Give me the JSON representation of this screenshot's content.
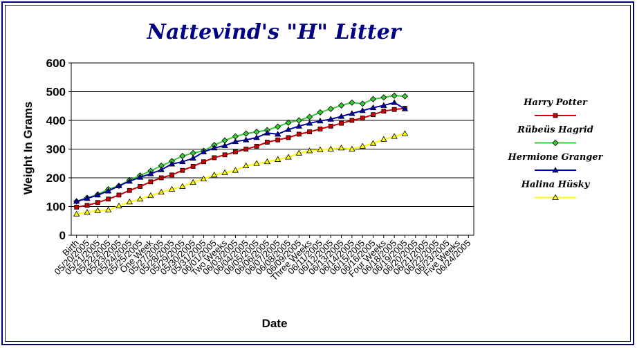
{
  "chart_data": {
    "type": "line",
    "title": "Nattevind's \"H\" Litter",
    "xlabel": "Date",
    "ylabel": "Weight In Grams",
    "ylim": [
      0,
      600
    ],
    "yticks": [
      0,
      100,
      200,
      300,
      400,
      500,
      600
    ],
    "grid": "horizontal",
    "legend_position": "right",
    "categories": [
      "Birth",
      "05/20/2005",
      "05/21/2005",
      "05/22/2005",
      "05/23/2005",
      "05/24/2005",
      "05/25/2005",
      "One Week",
      "05/27/2005",
      "05/28/2005",
      "05/29/2005",
      "05/30/2005",
      "05/31/2005",
      "06/01/2005",
      "Two Weeks",
      "06/03/2005",
      "06/04/2005",
      "06/05/2005",
      "06/06/2005",
      "06/07/2005",
      "06/08/2005",
      "06/09/2005",
      "Three Weeks",
      "06/11/2005",
      "06/12/2005",
      "06/13/2005",
      "06/14/2005",
      "06/15/2005",
      "06/16/2005",
      "Four Weeks",
      "06/18/2005",
      "06/19/2005",
      "06/20/2005",
      "06/21/2005",
      "06/22/2005",
      "06/23/2005",
      "Five Weeks",
      "06/24/2005"
    ],
    "series": [
      {
        "name": "Harry Potter",
        "color": "#cc0000",
        "marker": "square",
        "values": [
          98,
          104,
          114,
          126,
          140,
          156,
          170,
          186,
          200,
          210,
          226,
          240,
          256,
          270,
          280,
          290,
          300,
          310,
          324,
          332,
          340,
          352,
          360,
          370,
          380,
          390,
          400,
          408,
          420,
          432,
          438,
          442,
          null,
          null,
          null,
          null,
          null,
          null
        ]
      },
      {
        "name": "Rübeüs Hagrid",
        "color": "#33cc33",
        "marker": "diamond",
        "values": [
          118,
          130,
          142,
          160,
          172,
          192,
          208,
          224,
          242,
          258,
          276,
          286,
          294,
          314,
          330,
          344,
          354,
          360,
          366,
          378,
          392,
          400,
          412,
          428,
          440,
          452,
          462,
          458,
          474,
          480,
          486,
          484,
          null,
          null,
          null,
          null,
          null,
          null
        ]
      },
      {
        "name": "Hermione Granger",
        "color": "#0000aa",
        "marker": "triangle",
        "values": [
          118,
          128,
          140,
          154,
          172,
          188,
          202,
          214,
          228,
          248,
          256,
          268,
          290,
          304,
          312,
          326,
          332,
          340,
          356,
          352,
          368,
          380,
          390,
          398,
          404,
          414,
          424,
          434,
          444,
          452,
          462,
          440,
          null,
          null,
          null,
          null,
          null,
          null
        ]
      },
      {
        "name": "Halina Hüsky",
        "color": "#ffff00",
        "marker": "triangle",
        "values": [
          74,
          80,
          86,
          88,
          102,
          116,
          126,
          138,
          150,
          160,
          170,
          184,
          196,
          210,
          218,
          226,
          242,
          250,
          256,
          264,
          272,
          286,
          294,
          298,
          300,
          304,
          300,
          310,
          320,
          334,
          344,
          354,
          null,
          null,
          null,
          null,
          null,
          null
        ]
      }
    ]
  }
}
